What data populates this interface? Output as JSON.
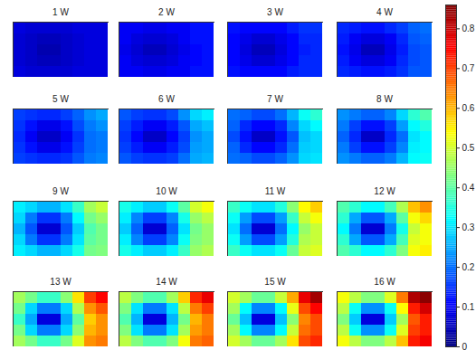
{
  "chart_data": {
    "type": "heatmap",
    "tick_labels": false,
    "color_range": [
      0,
      0.86
    ],
    "color_ticks": [
      0,
      0.1,
      0.2,
      0.3,
      0.4,
      0.5,
      0.6,
      0.7,
      0.8
    ],
    "panels": [
      {
        "title": "1 W",
        "cells": [
          [
            0.08,
            0.07,
            0.07,
            0.07,
            0.07,
            0.08,
            0.08,
            0.08
          ],
          [
            0.07,
            0.06,
            0.05,
            0.05,
            0.06,
            0.07,
            0.08,
            0.08
          ],
          [
            0.07,
            0.06,
            0.04,
            0.04,
            0.06,
            0.07,
            0.08,
            0.08
          ],
          [
            0.07,
            0.06,
            0.05,
            0.05,
            0.06,
            0.07,
            0.08,
            0.08
          ],
          [
            0.08,
            0.07,
            0.07,
            0.07,
            0.07,
            0.08,
            0.08,
            0.08
          ]
        ]
      },
      {
        "title": "2 W",
        "cells": [
          [
            0.1,
            0.1,
            0.09,
            0.09,
            0.1,
            0.1,
            0.12,
            0.12
          ],
          [
            0.1,
            0.08,
            0.07,
            0.07,
            0.08,
            0.1,
            0.12,
            0.12
          ],
          [
            0.09,
            0.07,
            0.05,
            0.05,
            0.07,
            0.09,
            0.11,
            0.12
          ],
          [
            0.1,
            0.08,
            0.07,
            0.07,
            0.08,
            0.1,
            0.11,
            0.12
          ],
          [
            0.1,
            0.1,
            0.09,
            0.09,
            0.1,
            0.1,
            0.12,
            0.12
          ]
        ]
      },
      {
        "title": "3 W",
        "cells": [
          [
            0.12,
            0.11,
            0.11,
            0.11,
            0.11,
            0.13,
            0.15,
            0.15
          ],
          [
            0.11,
            0.09,
            0.07,
            0.07,
            0.09,
            0.11,
            0.14,
            0.14
          ],
          [
            0.11,
            0.08,
            0.05,
            0.05,
            0.08,
            0.11,
            0.13,
            0.14
          ],
          [
            0.11,
            0.09,
            0.07,
            0.07,
            0.09,
            0.11,
            0.14,
            0.14
          ],
          [
            0.12,
            0.11,
            0.11,
            0.11,
            0.11,
            0.13,
            0.14,
            0.14
          ]
        ]
      },
      {
        "title": "4 W",
        "cells": [
          [
            0.14,
            0.13,
            0.12,
            0.12,
            0.14,
            0.16,
            0.19,
            0.2
          ],
          [
            0.13,
            0.1,
            0.08,
            0.08,
            0.1,
            0.14,
            0.18,
            0.19
          ],
          [
            0.12,
            0.09,
            0.05,
            0.05,
            0.09,
            0.13,
            0.17,
            0.18
          ],
          [
            0.13,
            0.1,
            0.08,
            0.08,
            0.1,
            0.14,
            0.17,
            0.18
          ],
          [
            0.14,
            0.13,
            0.12,
            0.12,
            0.13,
            0.15,
            0.18,
            0.18
          ]
        ]
      },
      {
        "title": "5 W",
        "cells": [
          [
            0.16,
            0.15,
            0.14,
            0.14,
            0.16,
            0.19,
            0.23,
            0.25
          ],
          [
            0.15,
            0.12,
            0.09,
            0.09,
            0.12,
            0.17,
            0.21,
            0.23
          ],
          [
            0.14,
            0.1,
            0.06,
            0.06,
            0.1,
            0.15,
            0.2,
            0.21
          ],
          [
            0.15,
            0.12,
            0.09,
            0.09,
            0.12,
            0.16,
            0.2,
            0.21
          ],
          [
            0.16,
            0.15,
            0.14,
            0.14,
            0.15,
            0.18,
            0.21,
            0.22
          ]
        ]
      },
      {
        "title": "6 W",
        "cells": [
          [
            0.18,
            0.16,
            0.15,
            0.15,
            0.17,
            0.23,
            0.29,
            0.31
          ],
          [
            0.16,
            0.13,
            0.1,
            0.1,
            0.13,
            0.18,
            0.25,
            0.27
          ],
          [
            0.15,
            0.11,
            0.06,
            0.06,
            0.11,
            0.16,
            0.23,
            0.25
          ],
          [
            0.16,
            0.13,
            0.1,
            0.1,
            0.13,
            0.17,
            0.24,
            0.25
          ],
          [
            0.18,
            0.16,
            0.15,
            0.15,
            0.16,
            0.2,
            0.25,
            0.26
          ]
        ]
      },
      {
        "title": "7 W",
        "cells": [
          [
            0.2,
            0.19,
            0.17,
            0.17,
            0.2,
            0.26,
            0.33,
            0.36
          ],
          [
            0.19,
            0.14,
            0.11,
            0.11,
            0.14,
            0.22,
            0.29,
            0.32
          ],
          [
            0.17,
            0.12,
            0.06,
            0.06,
            0.12,
            0.18,
            0.27,
            0.29
          ],
          [
            0.19,
            0.14,
            0.11,
            0.11,
            0.14,
            0.2,
            0.28,
            0.29
          ],
          [
            0.2,
            0.19,
            0.17,
            0.17,
            0.19,
            0.23,
            0.29,
            0.3
          ]
        ]
      },
      {
        "title": "8 W",
        "cells": [
          [
            0.23,
            0.21,
            0.19,
            0.19,
            0.22,
            0.29,
            0.36,
            0.39
          ],
          [
            0.21,
            0.16,
            0.12,
            0.12,
            0.16,
            0.24,
            0.32,
            0.35
          ],
          [
            0.19,
            0.14,
            0.06,
            0.06,
            0.14,
            0.2,
            0.3,
            0.32
          ],
          [
            0.21,
            0.16,
            0.12,
            0.12,
            0.16,
            0.22,
            0.31,
            0.32
          ],
          [
            0.23,
            0.21,
            0.19,
            0.19,
            0.21,
            0.26,
            0.32,
            0.33
          ]
        ]
      },
      {
        "title": "9 W",
        "cells": [
          [
            0.31,
            0.29,
            0.26,
            0.26,
            0.3,
            0.37,
            0.46,
            0.49
          ],
          [
            0.29,
            0.21,
            0.15,
            0.15,
            0.21,
            0.32,
            0.42,
            0.45
          ],
          [
            0.26,
            0.18,
            0.07,
            0.07,
            0.18,
            0.28,
            0.39,
            0.42
          ],
          [
            0.29,
            0.21,
            0.15,
            0.15,
            0.21,
            0.3,
            0.4,
            0.42
          ],
          [
            0.31,
            0.29,
            0.26,
            0.26,
            0.29,
            0.34,
            0.42,
            0.43
          ]
        ]
      },
      {
        "title": "10 W",
        "cells": [
          [
            0.34,
            0.31,
            0.28,
            0.28,
            0.33,
            0.4,
            0.5,
            0.53
          ],
          [
            0.31,
            0.22,
            0.16,
            0.16,
            0.22,
            0.34,
            0.45,
            0.48
          ],
          [
            0.28,
            0.19,
            0.07,
            0.07,
            0.19,
            0.3,
            0.42,
            0.45
          ],
          [
            0.31,
            0.22,
            0.16,
            0.16,
            0.22,
            0.33,
            0.43,
            0.45
          ],
          [
            0.34,
            0.31,
            0.28,
            0.28,
            0.31,
            0.37,
            0.45,
            0.47
          ]
        ]
      },
      {
        "title": "11 W",
        "cells": [
          [
            0.37,
            0.33,
            0.3,
            0.3,
            0.35,
            0.44,
            0.54,
            0.58
          ],
          [
            0.33,
            0.24,
            0.17,
            0.17,
            0.24,
            0.37,
            0.49,
            0.53
          ],
          [
            0.3,
            0.2,
            0.07,
            0.07,
            0.2,
            0.32,
            0.45,
            0.49
          ],
          [
            0.33,
            0.24,
            0.17,
            0.17,
            0.24,
            0.35,
            0.47,
            0.49
          ],
          [
            0.37,
            0.33,
            0.3,
            0.3,
            0.33,
            0.41,
            0.49,
            0.51
          ]
        ]
      },
      {
        "title": "12 W",
        "cells": [
          [
            0.39,
            0.36,
            0.32,
            0.32,
            0.38,
            0.47,
            0.59,
            0.63
          ],
          [
            0.36,
            0.25,
            0.18,
            0.18,
            0.25,
            0.4,
            0.53,
            0.57
          ],
          [
            0.32,
            0.21,
            0.07,
            0.07,
            0.21,
            0.34,
            0.49,
            0.53
          ],
          [
            0.36,
            0.25,
            0.18,
            0.18,
            0.25,
            0.38,
            0.51,
            0.53
          ],
          [
            0.39,
            0.36,
            0.32,
            0.32,
            0.36,
            0.43,
            0.53,
            0.55
          ]
        ]
      },
      {
        "title": "13 W",
        "cells": [
          [
            0.46,
            0.42,
            0.37,
            0.37,
            0.44,
            0.56,
            0.7,
            0.75
          ],
          [
            0.42,
            0.29,
            0.21,
            0.21,
            0.29,
            0.47,
            0.63,
            0.68
          ],
          [
            0.37,
            0.25,
            0.08,
            0.08,
            0.25,
            0.4,
            0.58,
            0.63
          ],
          [
            0.42,
            0.29,
            0.21,
            0.21,
            0.29,
            0.44,
            0.6,
            0.63
          ],
          [
            0.46,
            0.42,
            0.37,
            0.37,
            0.42,
            0.51,
            0.63,
            0.65
          ]
        ]
      },
      {
        "title": "14 W",
        "cells": [
          [
            0.48,
            0.43,
            0.39,
            0.39,
            0.46,
            0.58,
            0.72,
            0.77
          ],
          [
            0.43,
            0.3,
            0.21,
            0.21,
            0.3,
            0.48,
            0.65,
            0.7
          ],
          [
            0.39,
            0.26,
            0.08,
            0.08,
            0.26,
            0.42,
            0.6,
            0.65
          ],
          [
            0.43,
            0.3,
            0.21,
            0.21,
            0.3,
            0.46,
            0.62,
            0.65
          ],
          [
            0.48,
            0.43,
            0.39,
            0.39,
            0.43,
            0.53,
            0.65,
            0.67
          ]
        ]
      },
      {
        "title": "15 W",
        "cells": [
          [
            0.5,
            0.46,
            0.41,
            0.41,
            0.49,
            0.61,
            0.77,
            0.83
          ],
          [
            0.46,
            0.32,
            0.22,
            0.22,
            0.32,
            0.52,
            0.69,
            0.75
          ],
          [
            0.41,
            0.27,
            0.08,
            0.08,
            0.27,
            0.44,
            0.64,
            0.69
          ],
          [
            0.46,
            0.32,
            0.22,
            0.22,
            0.32,
            0.49,
            0.66,
            0.69
          ],
          [
            0.5,
            0.46,
            0.41,
            0.41,
            0.46,
            0.56,
            0.69,
            0.72
          ]
        ]
      },
      {
        "title": "16 W",
        "cells": [
          [
            0.53,
            0.48,
            0.43,
            0.43,
            0.51,
            0.65,
            0.82,
            0.85
          ],
          [
            0.48,
            0.33,
            0.23,
            0.23,
            0.33,
            0.54,
            0.73,
            0.79
          ],
          [
            0.43,
            0.28,
            0.08,
            0.08,
            0.28,
            0.46,
            0.68,
            0.73
          ],
          [
            0.48,
            0.33,
            0.23,
            0.23,
            0.33,
            0.51,
            0.7,
            0.73
          ],
          [
            0.53,
            0.48,
            0.43,
            0.43,
            0.48,
            0.59,
            0.73,
            0.76
          ]
        ]
      }
    ]
  }
}
